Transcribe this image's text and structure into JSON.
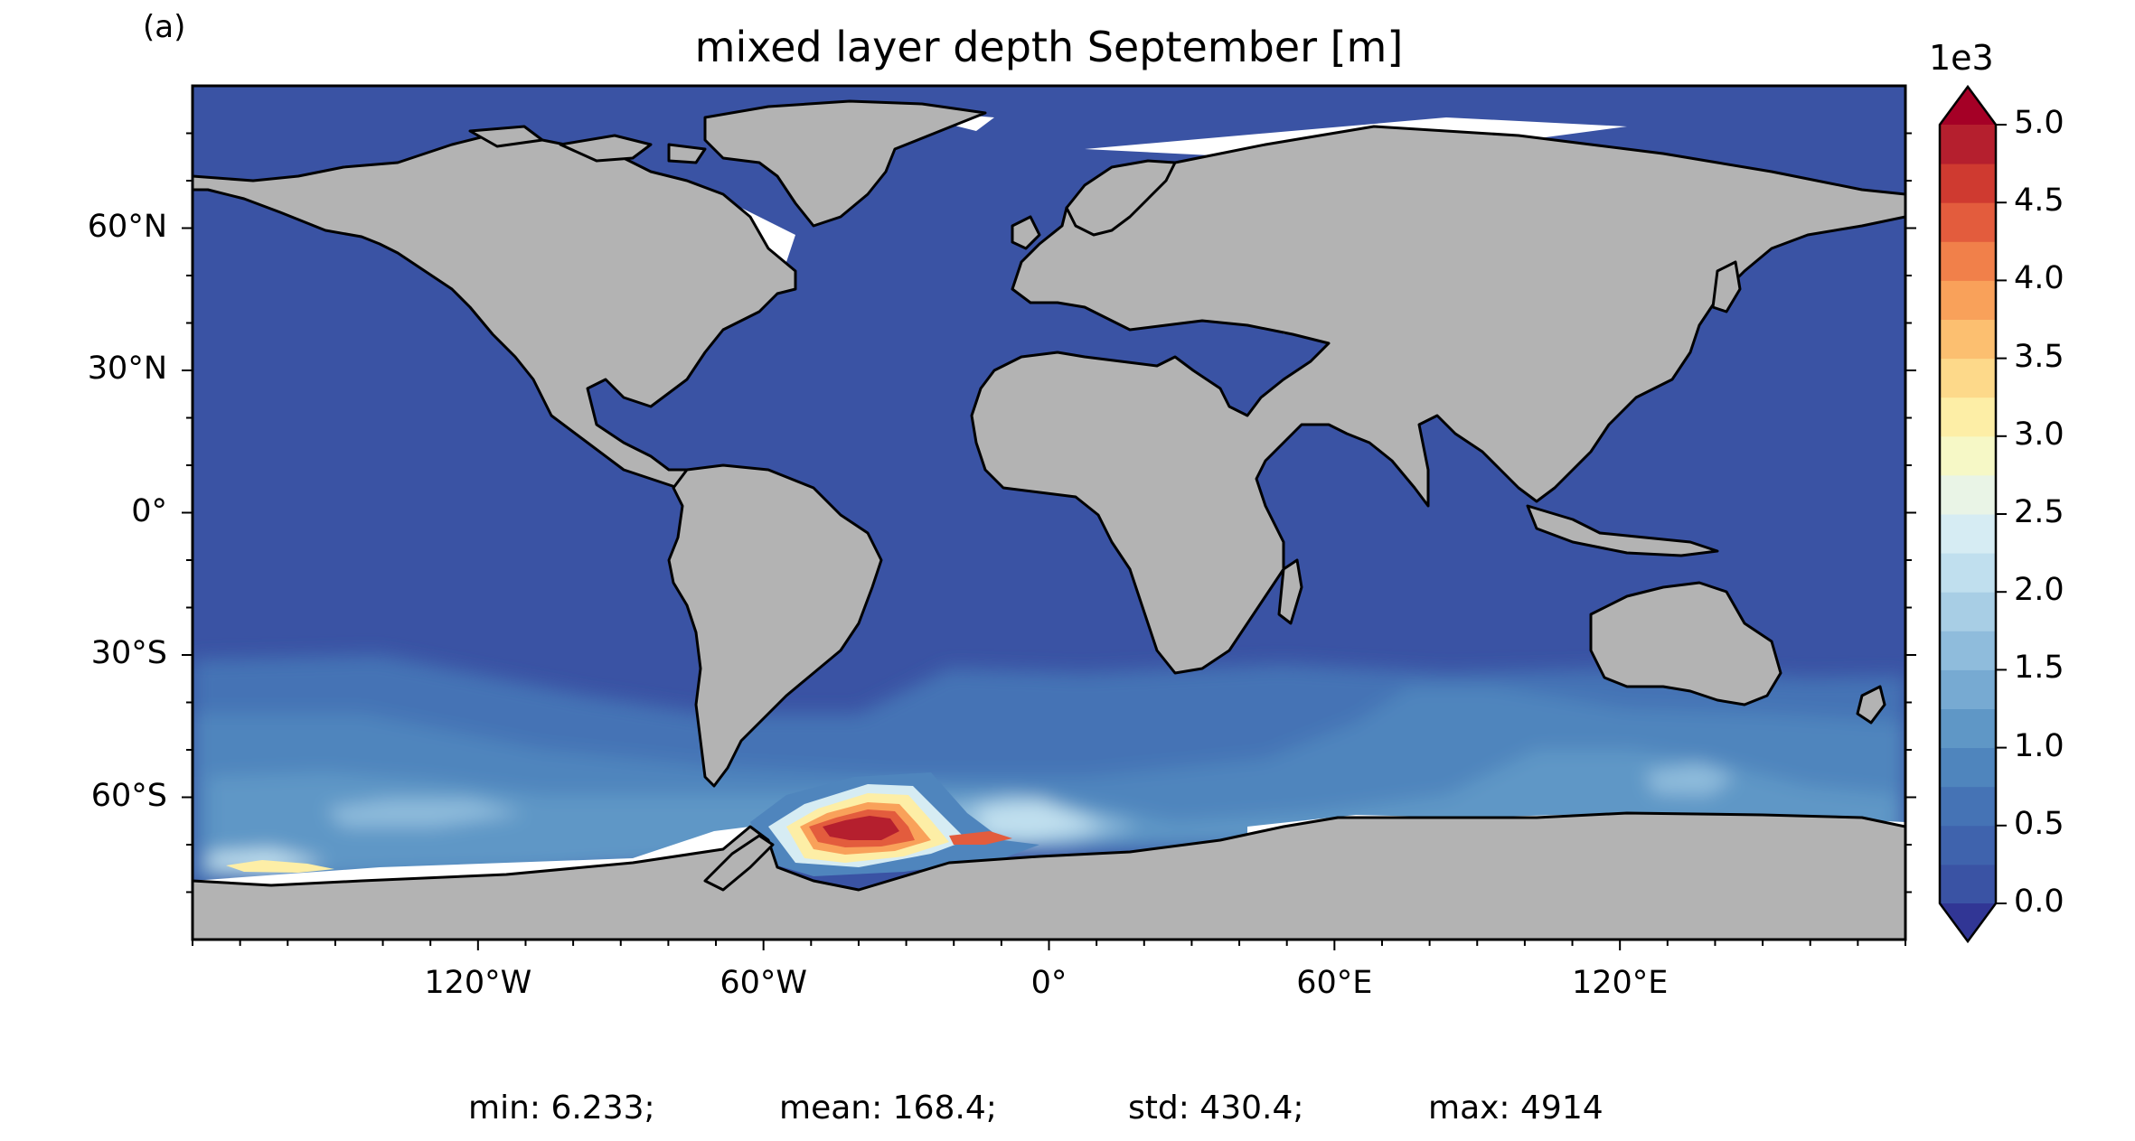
{
  "panel_label": "(a)",
  "title": "mixed layer depth September [m]",
  "colors": {
    "ocean": "#3a53a4",
    "land": "#b3b3b3",
    "ice": "#ffffff",
    "coast": "#000000"
  },
  "map": {
    "projection": "PlateCarree",
    "lon_range": [
      -180,
      180
    ],
    "lat_range": [
      -90,
      90
    ],
    "x_ticks": [
      {
        "lon": -120,
        "label": "120°W"
      },
      {
        "lon": -60,
        "label": "60°W"
      },
      {
        "lon": 0,
        "label": "0°"
      },
      {
        "lon": 60,
        "label": "60°E"
      },
      {
        "lon": 120,
        "label": "120°E"
      }
    ],
    "y_ticks": [
      {
        "lat": 60,
        "label": "60°N"
      },
      {
        "lat": 30,
        "label": "30°N"
      },
      {
        "lat": 0,
        "label": "0°"
      },
      {
        "lat": -30,
        "label": "30°S"
      },
      {
        "lat": -60,
        "label": "60°S"
      }
    ]
  },
  "colorbar": {
    "exponent_label": "1e3",
    "extend": "both",
    "range": [
      0,
      5000
    ],
    "levels": 20,
    "ticks": [
      {
        "value": 0,
        "label": "0.0"
      },
      {
        "value": 500,
        "label": "0.5"
      },
      {
        "value": 1000,
        "label": "1.0"
      },
      {
        "value": 1500,
        "label": "1.5"
      },
      {
        "value": 2000,
        "label": "2.0"
      },
      {
        "value": 2500,
        "label": "2.5"
      },
      {
        "value": 3000,
        "label": "3.0"
      },
      {
        "value": 3500,
        "label": "3.5"
      },
      {
        "value": 4000,
        "label": "4.0"
      },
      {
        "value": 4500,
        "label": "4.5"
      },
      {
        "value": 5000,
        "label": "5.0"
      }
    ],
    "colors": [
      "#3a53a4",
      "#3f63ad",
      "#4573b5",
      "#4f85bd",
      "#5f97c6",
      "#77aad2",
      "#8fbcdc",
      "#a8cee5",
      "#c0dfee",
      "#d6ecf3",
      "#e9f4e6",
      "#f6f8c6",
      "#fdeea6",
      "#fdd98a",
      "#fcbf70",
      "#f9a15a",
      "#f1804a",
      "#e35c3d",
      "#cf3a30",
      "#b51f2e"
    ],
    "under_color": "#313695",
    "over_color": "#a50026"
  },
  "stats": {
    "min": "min: 6.233;",
    "mean": "mean: 168.4;",
    "std": "std: 430.4;",
    "max": "max: 4914"
  }
}
